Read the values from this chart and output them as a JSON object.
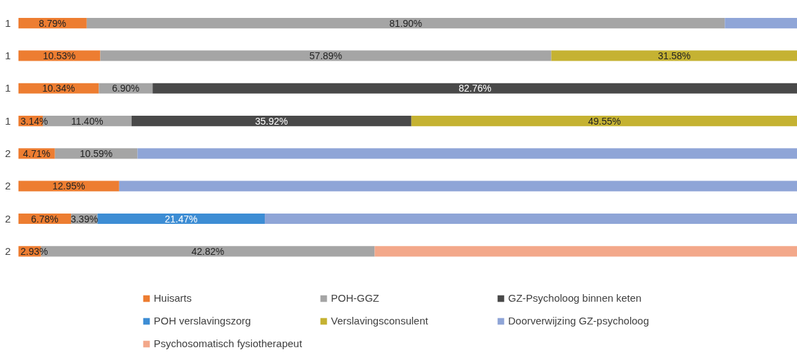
{
  "chart_data": {
    "type": "bar",
    "orientation": "horizontal",
    "stacked": true,
    "categories": [
      "1",
      "1",
      "1",
      "1",
      "2",
      "2",
      "2",
      "2"
    ],
    "xlim": [
      0,
      100
    ],
    "tick_labels": "y",
    "grid": false,
    "legend": "bottom",
    "series": [
      {
        "name": "Huisarts",
        "color": "#ed7d31",
        "values": [
          8.79,
          10.53,
          10.34,
          3.14,
          4.71,
          12.95,
          6.78,
          2.93
        ],
        "value_labels": [
          "8.79%",
          "10.53%",
          "10.34%",
          "3.14%",
          "4.71%",
          "12.95%",
          "6.78%",
          "2.93%"
        ]
      },
      {
        "name": "POH-GGZ",
        "color": "#a5a5a5",
        "values": [
          81.9,
          57.89,
          6.9,
          11.4,
          10.59,
          null,
          3.39,
          42.82
        ],
        "value_labels": [
          "81.90%",
          "57.89%",
          "6.90%",
          "11.40%",
          "10.59%",
          null,
          "3.39%",
          "42.82%"
        ]
      },
      {
        "name": "GZ-Psycholoog binnen keten",
        "color": "#494949",
        "values": [
          null,
          null,
          82.76,
          35.92,
          null,
          null,
          null,
          null
        ],
        "value_labels": [
          null,
          null,
          "82.76%",
          "35.92%",
          null,
          null,
          null,
          null
        ]
      },
      {
        "name": "POH verslavingszorg",
        "color": "#3d8dd4",
        "values": [
          null,
          null,
          null,
          null,
          null,
          null,
          21.47,
          null
        ],
        "value_labels": [
          null,
          null,
          null,
          null,
          null,
          null,
          "21.47%",
          null
        ]
      },
      {
        "name": "Verslavingsconsulent",
        "color": "#c5b232",
        "values": [
          null,
          31.58,
          null,
          49.55,
          null,
          null,
          null,
          null
        ],
        "value_labels": [
          null,
          "31.58%",
          null,
          "49.55%",
          null,
          null,
          null,
          null
        ]
      },
      {
        "name": "Doorverwijzing GZ-psycholoog",
        "color": "#8fa5d7",
        "values": [
          9.31,
          null,
          null,
          null,
          84.7,
          87.05,
          68.36,
          null
        ],
        "value_labels": [
          null,
          null,
          null,
          null,
          null,
          null,
          null,
          null
        ]
      },
      {
        "name": "Psychosomatisch fysiotherapeut",
        "color": "#f3a88a",
        "values": [
          null,
          null,
          null,
          null,
          null,
          null,
          null,
          54.25
        ],
        "value_labels": [
          null,
          null,
          null,
          null,
          null,
          null,
          null,
          null
        ]
      }
    ]
  }
}
